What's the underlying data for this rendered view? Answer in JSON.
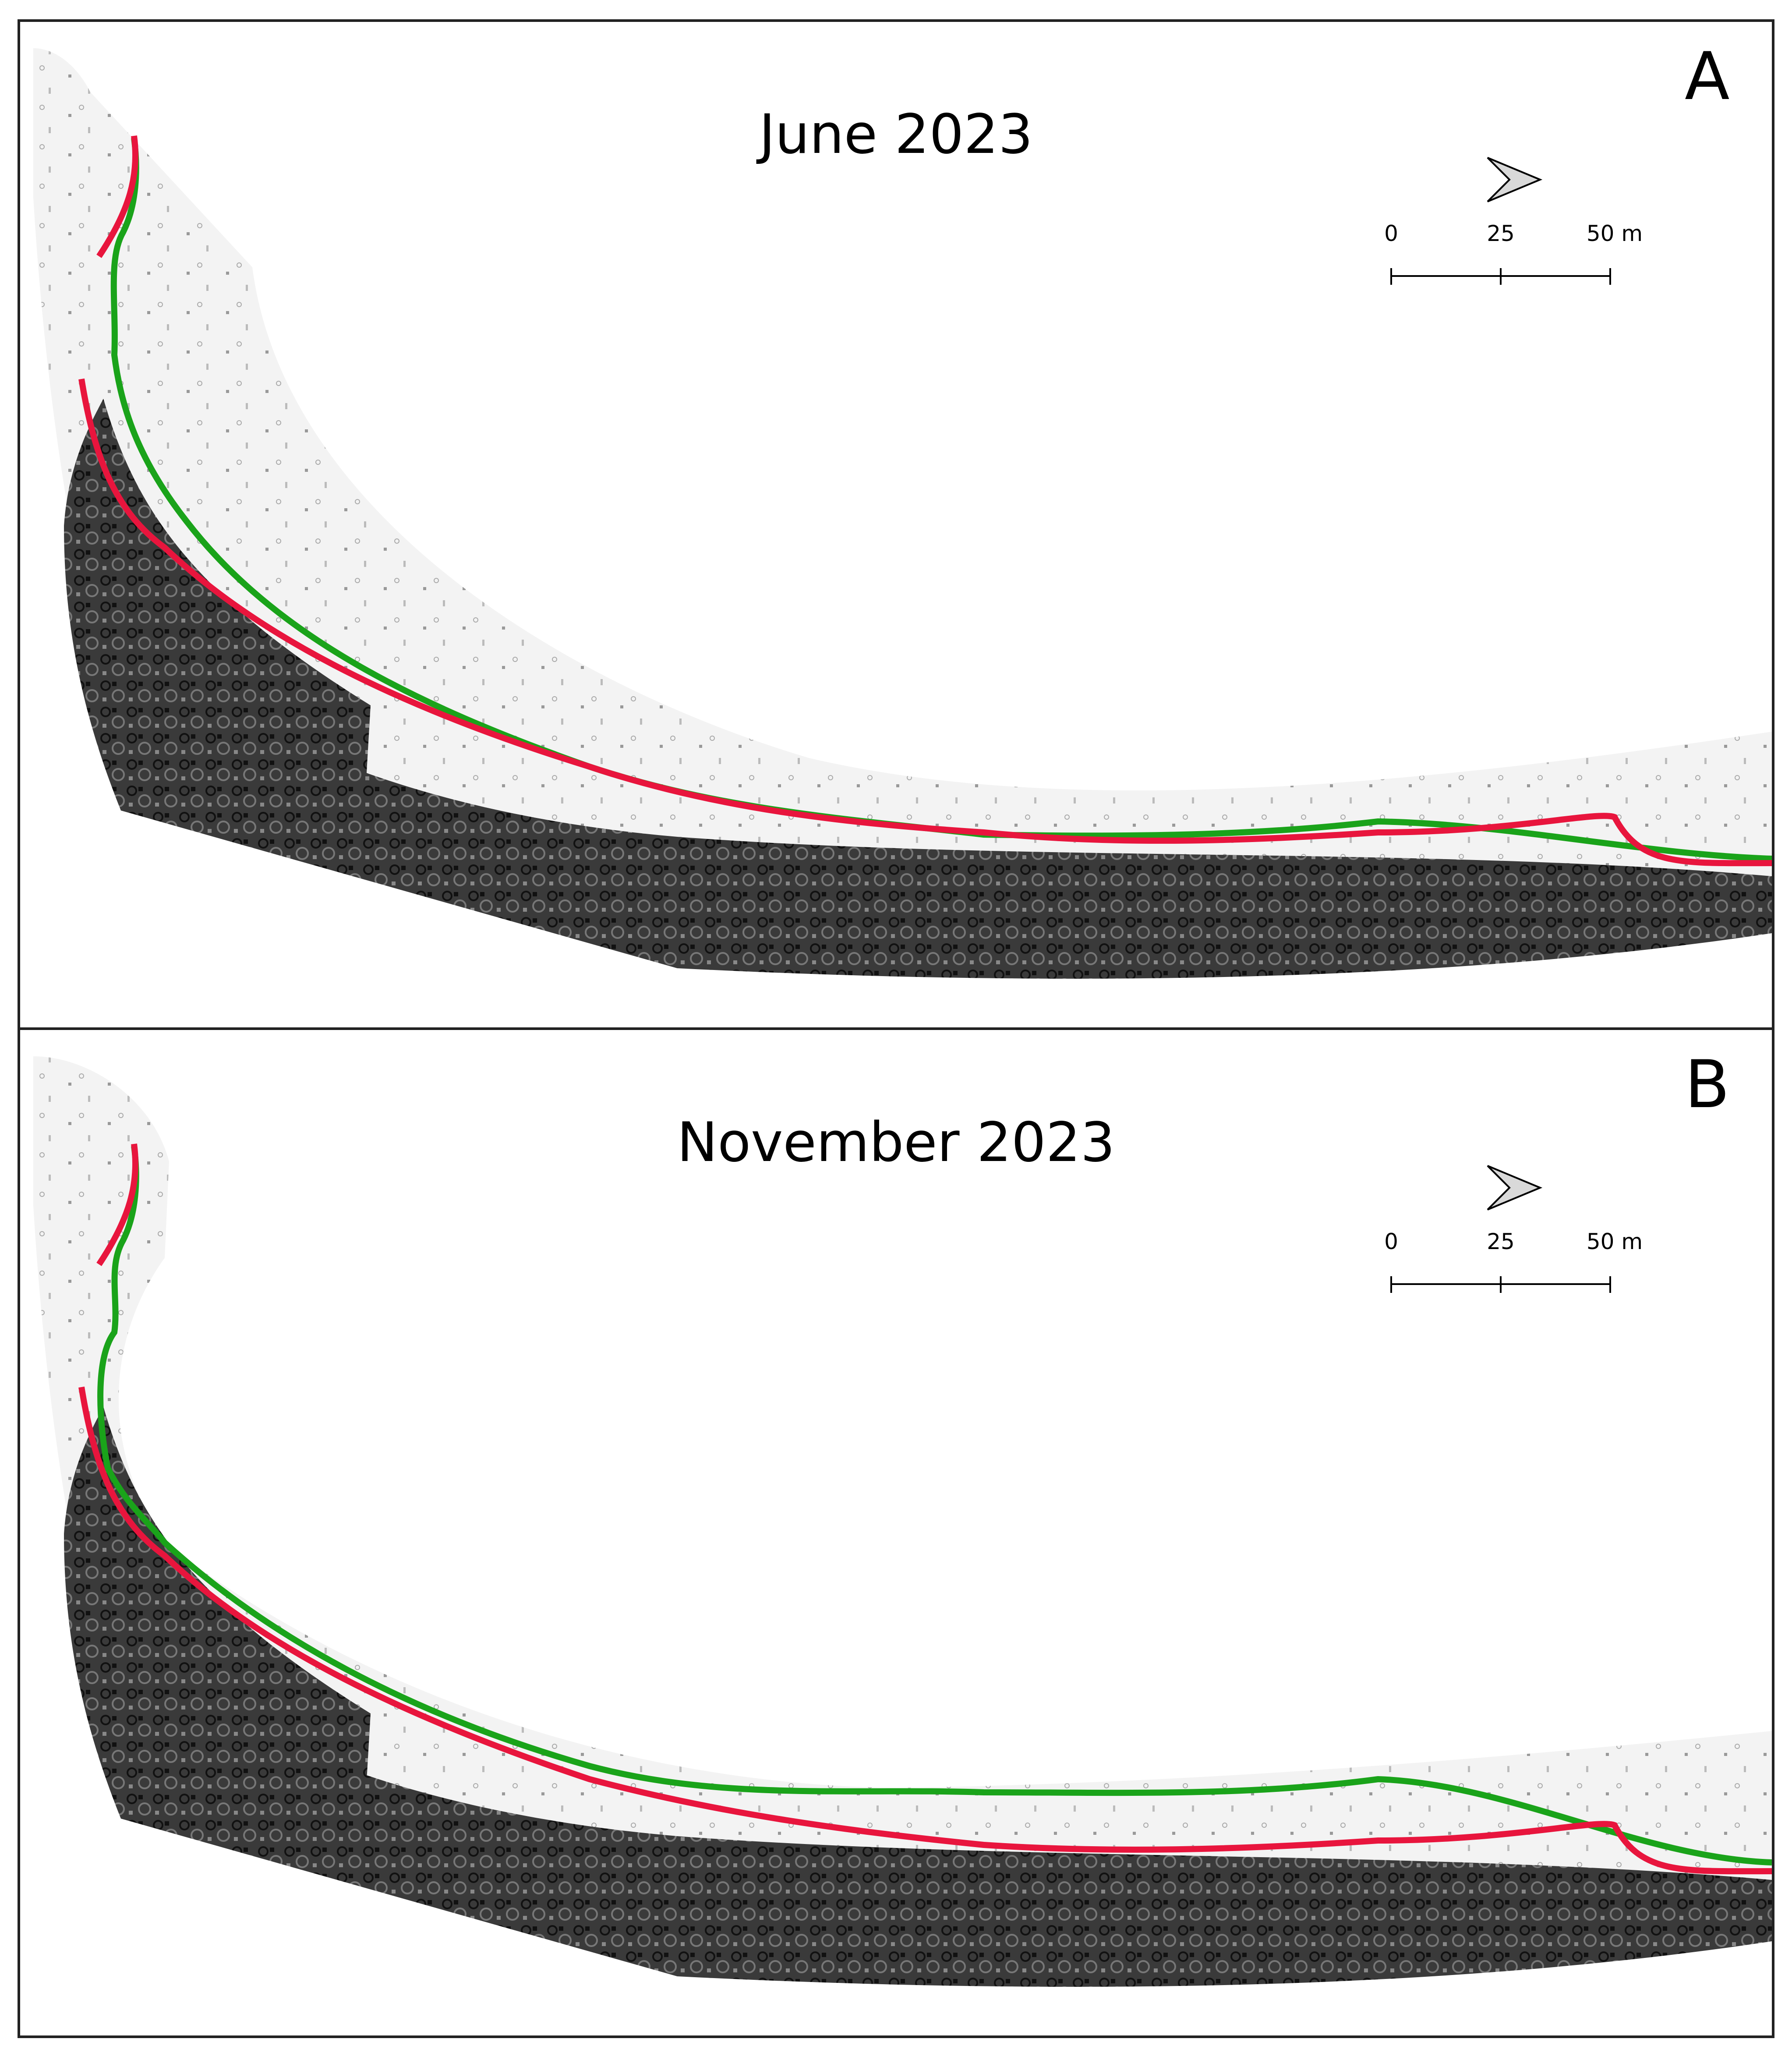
{
  "panels": [
    {
      "letter": "A",
      "title": "June 2023"
    },
    {
      "letter": "B",
      "title": "November 2023"
    }
  ],
  "scalebar": {
    "labels": [
      "0",
      "25",
      "50 m"
    ],
    "values_m": [
      0,
      25,
      50
    ]
  },
  "north_arrow": {
    "icon": "north-arrow-icon",
    "points_to": "right"
  },
  "line_colors": {
    "green": "#1aa31a",
    "red": "#e8153d"
  },
  "map_colors": {
    "rock": "#2b2b2b",
    "beach": "#f4f4f4"
  }
}
